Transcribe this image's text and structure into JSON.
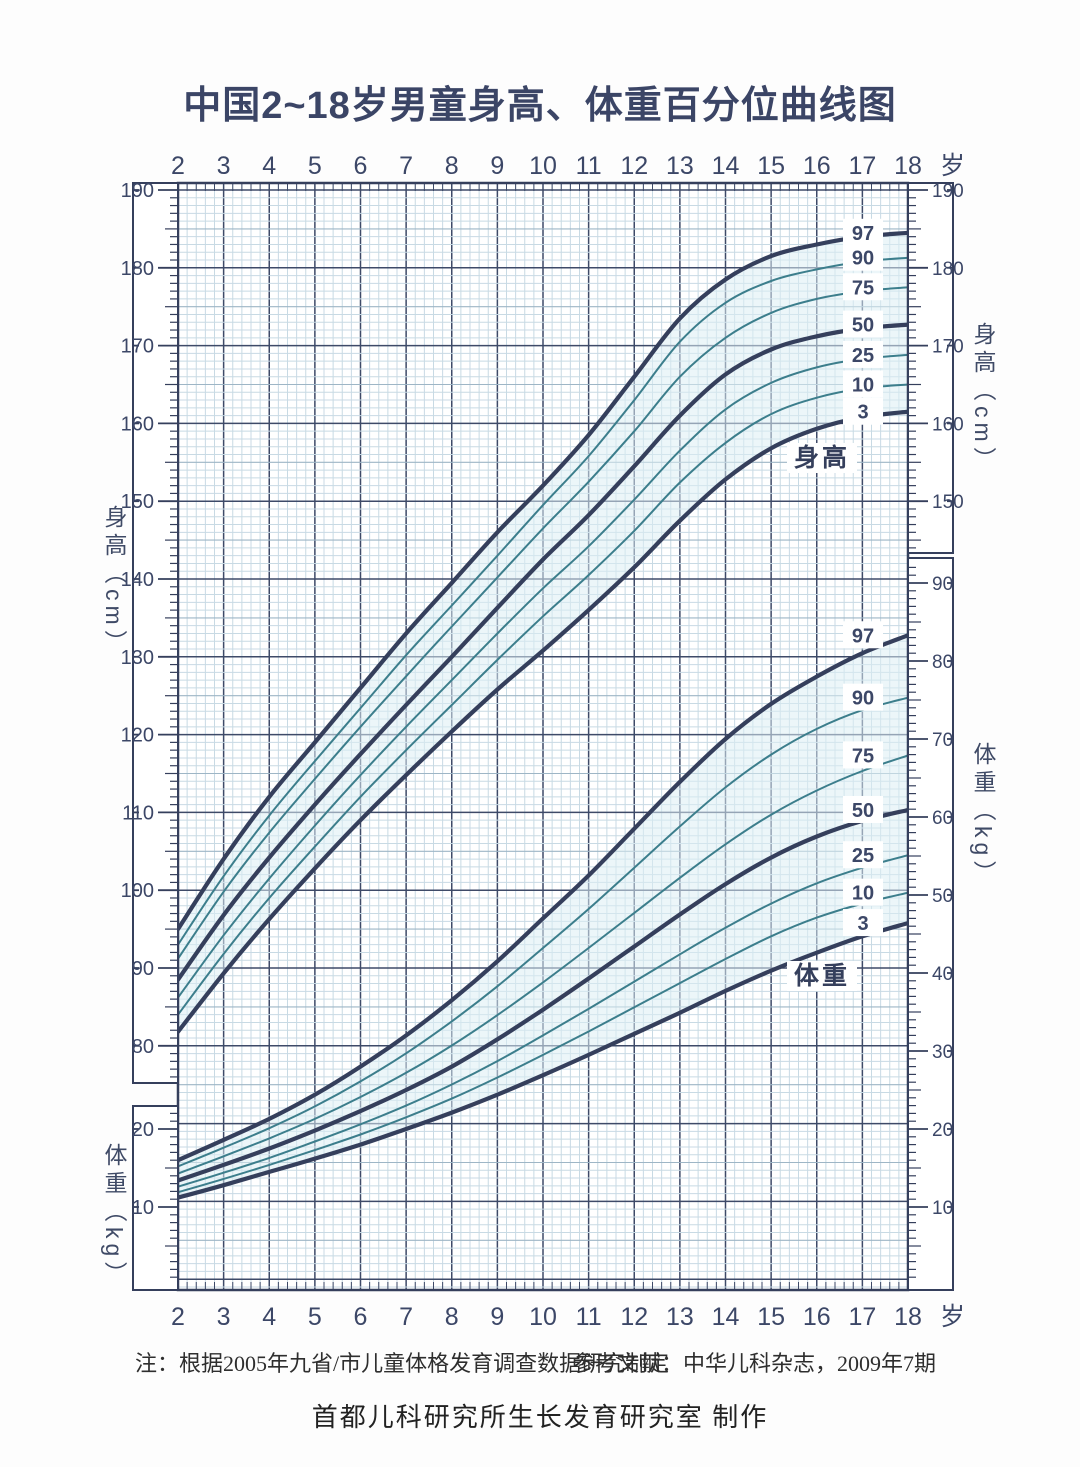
{
  "title": "中国2~18岁男童身高、体重百分位曲线图",
  "age_axis": {
    "unit": "岁",
    "ticks": [
      2,
      3,
      4,
      5,
      6,
      7,
      8,
      9,
      10,
      11,
      12,
      13,
      14,
      15,
      16,
      17,
      18
    ]
  },
  "rulers": {
    "left_height_ticks": [
      190,
      180,
      170,
      160,
      150,
      140,
      130,
      120,
      110,
      100,
      90,
      80
    ],
    "left_weight_ticks": [
      20,
      10
    ],
    "right_height_ticks": [
      190,
      180,
      170,
      160,
      150
    ],
    "right_weight_ticks": [
      90,
      80,
      70,
      60,
      50,
      40,
      30,
      20,
      10
    ]
  },
  "footers": {
    "note": "注：根据2005年九省/市儿童体格发育调查数据研究制定",
    "reference": "参考文献：中华儿科杂志，2009年7期",
    "producer": "首都儿科研究所生长发育研究室  制作"
  },
  "colors": {
    "navy": "#353f5c",
    "teal": "#3c7e8c",
    "grid_minor": "#c8dae4",
    "grid_medium": "#9eb6c6",
    "grid_major": "#3e4a68",
    "band_fill": "#ddeef4",
    "text": "#3c4767",
    "paper": "#ffffff"
  },
  "chart_data": {
    "type": "line",
    "x_label_unit": "岁",
    "ages": [
      2,
      3,
      4,
      5,
      6,
      7,
      8,
      9,
      10,
      11,
      12,
      13,
      14,
      15,
      16,
      17,
      18
    ],
    "percentile_labels": [
      "97",
      "90",
      "75",
      "50",
      "25",
      "10",
      "3"
    ],
    "legend_position": "right-of-curves",
    "grid": "on",
    "height": {
      "label": "身高",
      "unit_label": "身高（cm）",
      "axis_range": [
        80,
        190
      ],
      "series": {
        "p97": [
          95.0,
          104.0,
          112.0,
          119.0,
          126.0,
          133.0,
          139.5,
          146.0,
          152.0,
          158.5,
          166.0,
          173.5,
          178.5,
          181.5,
          183.0,
          184.0,
          184.5
        ],
        "p90": [
          93.0,
          101.8,
          109.6,
          116.6,
          123.4,
          130.2,
          136.6,
          143.0,
          149.5,
          155.8,
          163.0,
          170.5,
          175.5,
          178.3,
          179.8,
          180.8,
          181.3
        ],
        "p75": [
          91.2,
          99.8,
          107.4,
          114.3,
          121.0,
          127.5,
          133.9,
          140.2,
          146.5,
          152.5,
          159.0,
          166.0,
          171.0,
          174.2,
          176.0,
          177.0,
          177.5
        ],
        "p50": [
          88.5,
          96.8,
          104.2,
          111.0,
          117.5,
          123.8,
          130.0,
          136.3,
          142.5,
          148.2,
          154.5,
          161.0,
          166.3,
          169.5,
          171.2,
          172.2,
          172.7
        ],
        "p25": [
          86.2,
          94.2,
          101.5,
          108.3,
          114.8,
          121.0,
          127.0,
          133.0,
          138.8,
          144.2,
          150.2,
          156.5,
          161.8,
          165.2,
          167.2,
          168.3,
          168.8
        ],
        "p10": [
          84.0,
          91.8,
          99.0,
          105.6,
          112.0,
          118.0,
          123.8,
          129.6,
          135.2,
          140.5,
          146.2,
          152.4,
          157.5,
          161.2,
          163.3,
          164.5,
          165.0
        ],
        "p3": [
          81.8,
          89.3,
          96.3,
          102.8,
          109.0,
          114.8,
          120.4,
          125.8,
          130.8,
          136.0,
          141.5,
          147.5,
          152.8,
          156.8,
          159.3,
          160.8,
          161.5
        ]
      }
    },
    "weight": {
      "label": "体重",
      "unit_label": "体重（kg）",
      "axis_range": [
        10,
        90
      ],
      "series": {
        "p97": [
          16.0,
          18.6,
          21.3,
          24.4,
          28.0,
          32.0,
          36.5,
          41.5,
          47.0,
          52.5,
          58.5,
          64.5,
          70.0,
          74.5,
          78.0,
          81.0,
          83.3
        ],
        "p90": [
          15.2,
          17.6,
          20.1,
          22.9,
          26.1,
          29.7,
          33.8,
          38.3,
          43.2,
          48.2,
          53.5,
          58.8,
          63.8,
          68.0,
          71.3,
          73.7,
          75.3
        ],
        "p75": [
          14.3,
          16.5,
          18.8,
          21.3,
          24.1,
          27.2,
          30.7,
          34.6,
          38.8,
          43.2,
          47.7,
          52.2,
          56.5,
          60.3,
          63.4,
          65.9,
          67.9
        ],
        "p50": [
          13.4,
          15.4,
          17.5,
          19.8,
          22.3,
          25.0,
          28.0,
          31.5,
          35.3,
          39.3,
          43.4,
          47.5,
          51.4,
          54.8,
          57.5,
          59.5,
          60.9
        ],
        "p25": [
          12.6,
          14.4,
          16.3,
          18.4,
          20.6,
          23.0,
          25.7,
          28.7,
          32.0,
          35.4,
          38.9,
          42.4,
          45.8,
          48.9,
          51.5,
          53.5,
          55.1
        ],
        "p10": [
          11.9,
          13.6,
          15.4,
          17.3,
          19.3,
          21.5,
          23.9,
          26.6,
          29.5,
          32.5,
          35.6,
          38.7,
          41.8,
          44.7,
          47.1,
          48.9,
          50.3
        ],
        "p3": [
          11.2,
          12.8,
          14.5,
          16.2,
          18.0,
          20.0,
          22.1,
          24.4,
          26.9,
          29.5,
          32.2,
          34.9,
          37.7,
          40.3,
          42.6,
          44.7,
          46.4
        ]
      }
    }
  }
}
